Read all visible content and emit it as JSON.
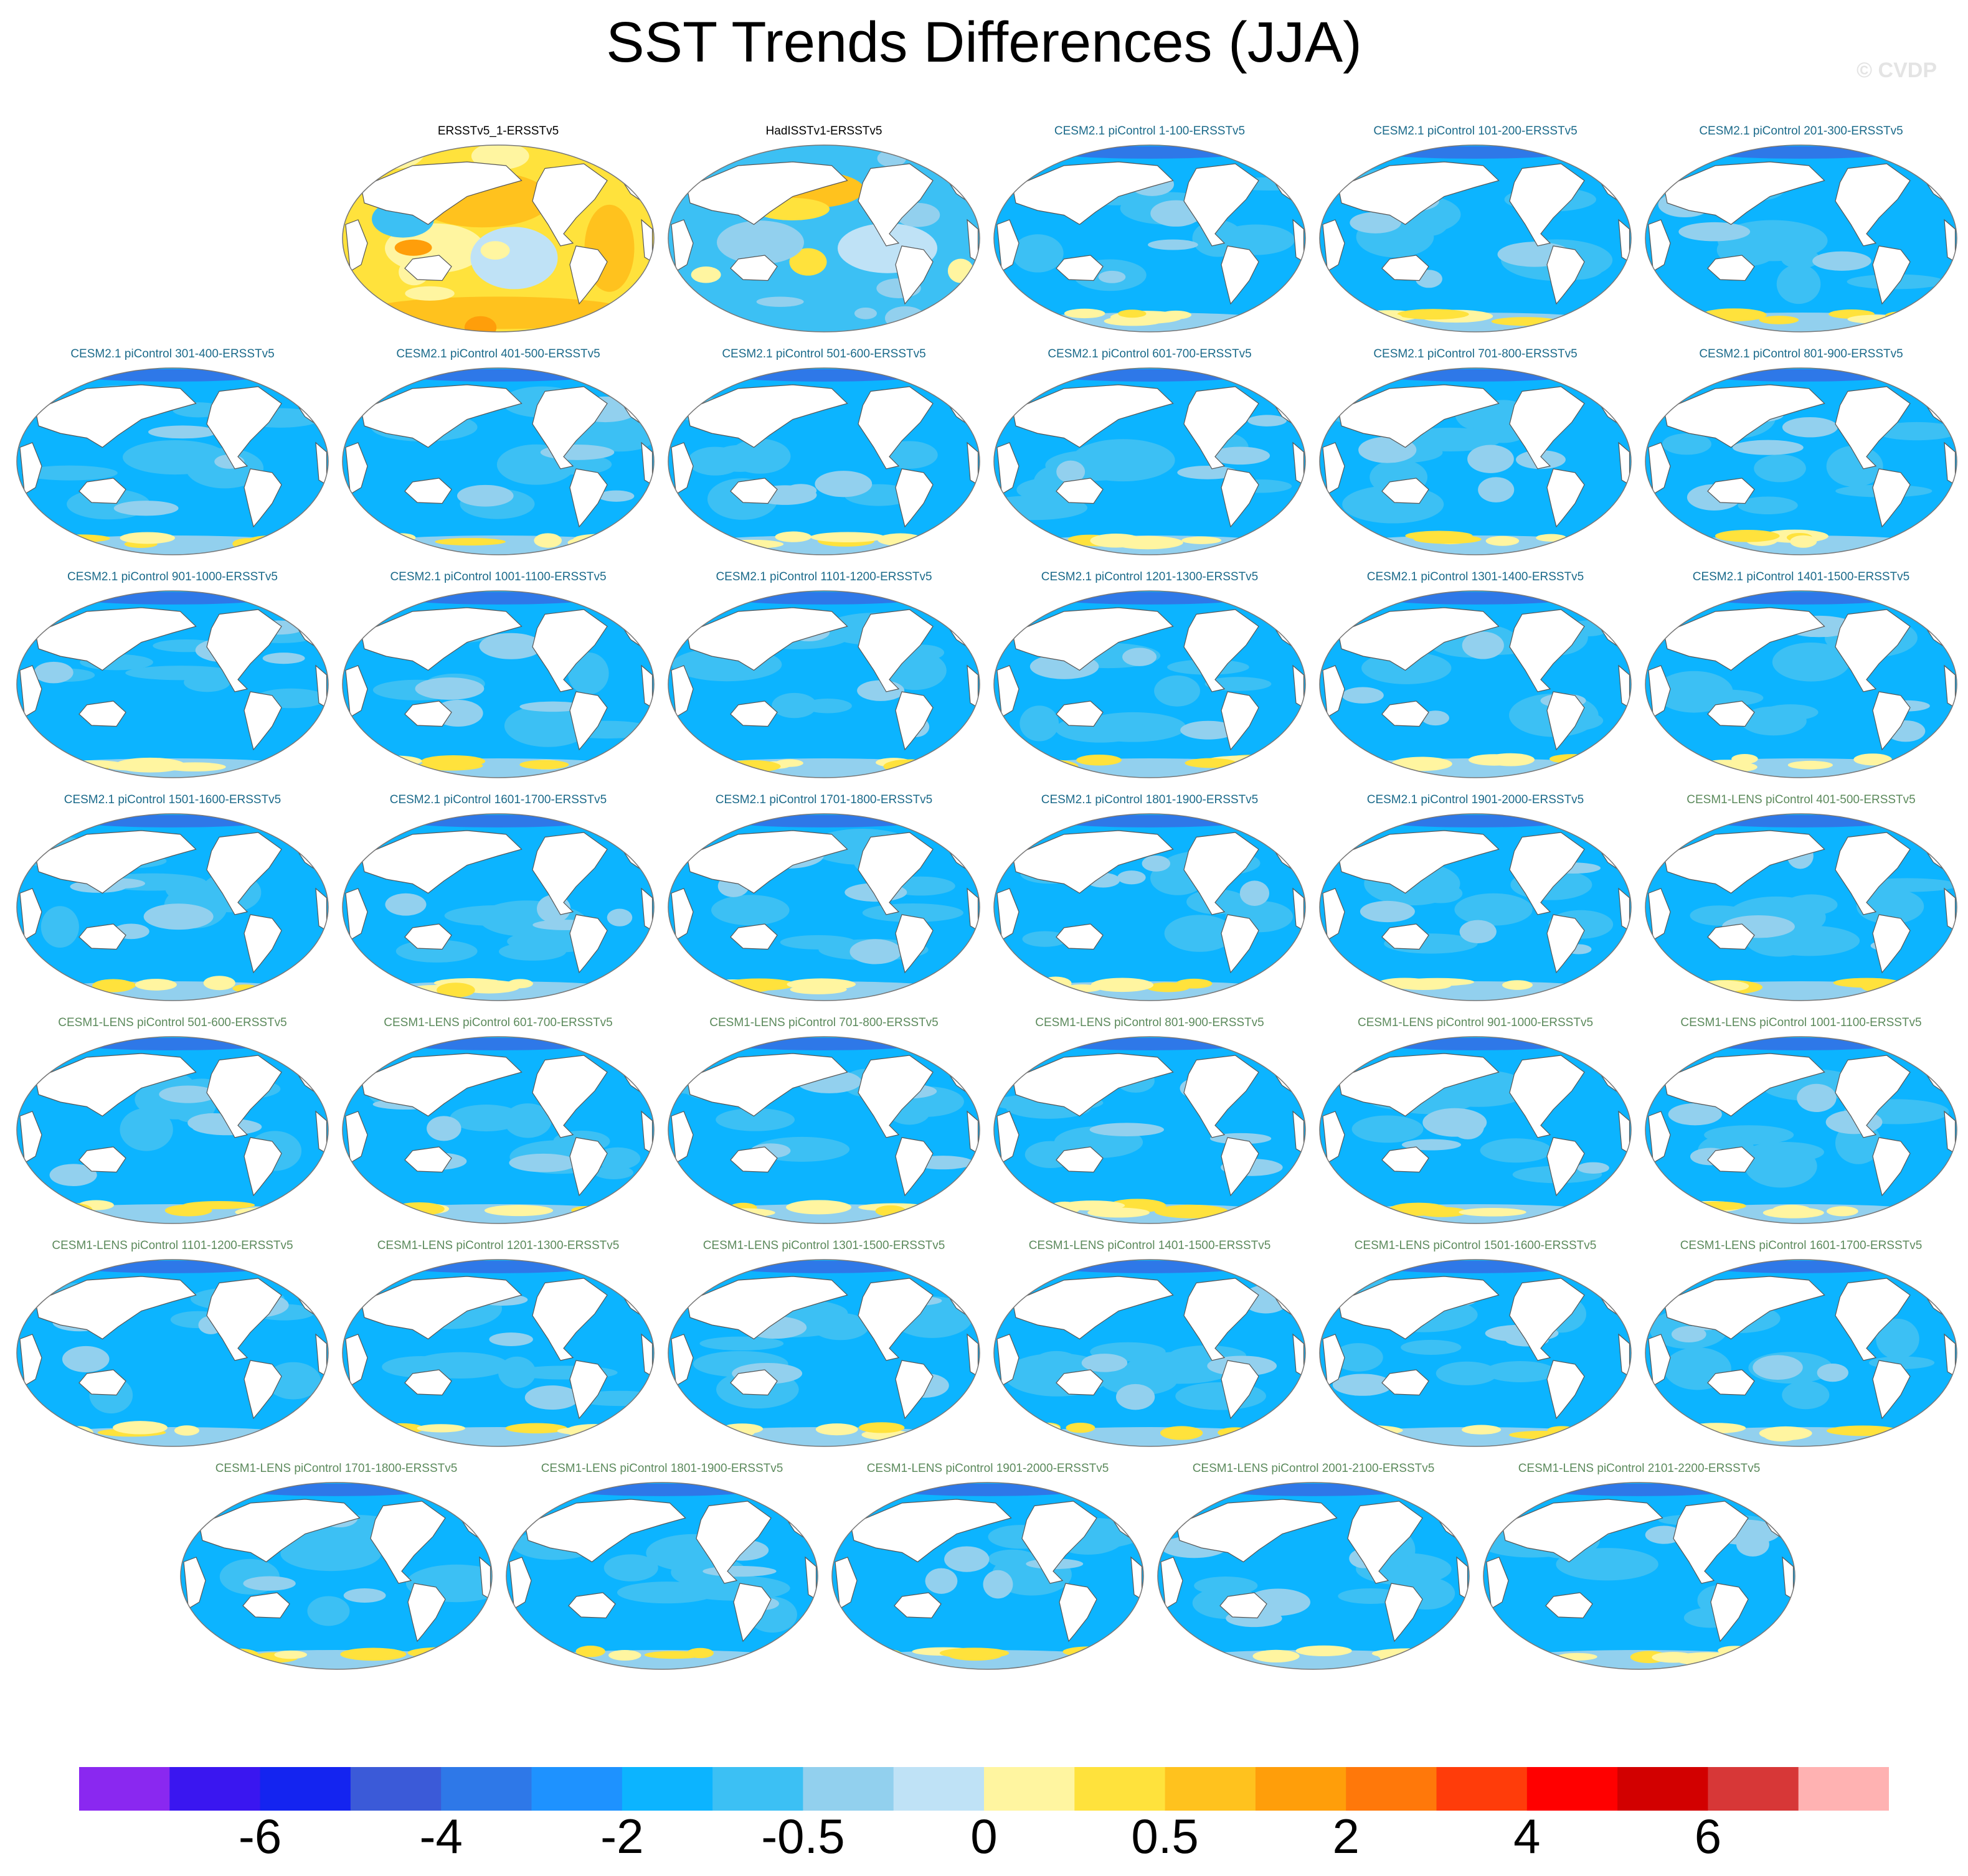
{
  "chart_data": {
    "type": "heatmap",
    "title": "SST Trends Differences (JJA)",
    "watermark": "© CVDP",
    "projection": "Robinson (Pacific-centred)",
    "panels": [
      {
        "label": "ERSSTv5_1-ERSSTv5",
        "group": "obs",
        "pattern": "warm"
      },
      {
        "label": "HadISSTv1-ERSSTv5",
        "group": "obs",
        "pattern": "mixed"
      },
      {
        "label": "CESM2.1 piControl 1-100-ERSSTv5",
        "group": "cesm2"
      },
      {
        "label": "CESM2.1 piControl 101-200-ERSSTv5",
        "group": "cesm2"
      },
      {
        "label": "CESM2.1 piControl 201-300-ERSSTv5",
        "group": "cesm2"
      },
      {
        "label": "CESM2.1 piControl 301-400-ERSSTv5",
        "group": "cesm2"
      },
      {
        "label": "CESM2.1 piControl 401-500-ERSSTv5",
        "group": "cesm2"
      },
      {
        "label": "CESM2.1 piControl 501-600-ERSSTv5",
        "group": "cesm2"
      },
      {
        "label": "CESM2.1 piControl 601-700-ERSSTv5",
        "group": "cesm2"
      },
      {
        "label": "CESM2.1 piControl 701-800-ERSSTv5",
        "group": "cesm2"
      },
      {
        "label": "CESM2.1 piControl 801-900-ERSSTv5",
        "group": "cesm2"
      },
      {
        "label": "CESM2.1 piControl 901-1000-ERSSTv5",
        "group": "cesm2"
      },
      {
        "label": "CESM2.1 piControl 1001-1100-ERSSTv5",
        "group": "cesm2"
      },
      {
        "label": "CESM2.1 piControl 1101-1200-ERSSTv5",
        "group": "cesm2"
      },
      {
        "label": "CESM2.1 piControl 1201-1300-ERSSTv5",
        "group": "cesm2"
      },
      {
        "label": "CESM2.1 piControl 1301-1400-ERSSTv5",
        "group": "cesm2"
      },
      {
        "label": "CESM2.1 piControl 1401-1500-ERSSTv5",
        "group": "cesm2"
      },
      {
        "label": "CESM2.1 piControl 1501-1600-ERSSTv5",
        "group": "cesm2"
      },
      {
        "label": "CESM2.1 piControl 1601-1700-ERSSTv5",
        "group": "cesm2"
      },
      {
        "label": "CESM2.1 piControl 1701-1800-ERSSTv5",
        "group": "cesm2"
      },
      {
        "label": "CESM2.1 piControl 1801-1900-ERSSTv5",
        "group": "cesm2"
      },
      {
        "label": "CESM2.1 piControl 1901-2000-ERSSTv5",
        "group": "cesm2"
      },
      {
        "label": "CESM1-LENS piControl 401-500-ERSSTv5",
        "group": "lens"
      },
      {
        "label": "CESM1-LENS piControl 501-600-ERSSTv5",
        "group": "lens"
      },
      {
        "label": "CESM1-LENS piControl 601-700-ERSSTv5",
        "group": "lens"
      },
      {
        "label": "CESM1-LENS piControl 701-800-ERSSTv5",
        "group": "lens"
      },
      {
        "label": "CESM1-LENS piControl 801-900-ERSSTv5",
        "group": "lens"
      },
      {
        "label": "CESM1-LENS piControl 901-1000-ERSSTv5",
        "group": "lens"
      },
      {
        "label": "CESM1-LENS piControl 1001-1100-ERSSTv5",
        "group": "lens"
      },
      {
        "label": "CESM1-LENS piControl 1101-1200-ERSSTv5",
        "group": "lens"
      },
      {
        "label": "CESM1-LENS piControl 1201-1300-ERSSTv5",
        "group": "lens"
      },
      {
        "label": "CESM1-LENS piControl 1301-1500-ERSSTv5",
        "group": "lens"
      },
      {
        "label": "CESM1-LENS piControl 1401-1500-ERSSTv5",
        "group": "lens"
      },
      {
        "label": "CESM1-LENS piControl 1501-1600-ERSSTv5",
        "group": "lens"
      },
      {
        "label": "CESM1-LENS piControl 1601-1700-ERSSTv5",
        "group": "lens"
      },
      {
        "label": "CESM1-LENS piControl 1701-1800-ERSSTv5",
        "group": "lens"
      },
      {
        "label": "CESM1-LENS piControl 1801-1900-ERSSTv5",
        "group": "lens"
      },
      {
        "label": "CESM1-LENS piControl 1901-2000-ERSSTv5",
        "group": "lens"
      },
      {
        "label": "CESM1-LENS piControl 2001-2100-ERSSTv5",
        "group": "lens"
      },
      {
        "label": "CESM1-LENS piControl 2101-2200-ERSSTv5",
        "group": "lens"
      }
    ],
    "colorbar": {
      "colors": [
        "#8a28f0",
        "#3a16f0",
        "#1424f0",
        "#3b5ad8",
        "#2e78e8",
        "#1e92ff",
        "#0cb4ff",
        "#3cc0f4",
        "#92d0ee",
        "#bfe2f6",
        "#fff5a0",
        "#ffe23c",
        "#ffc21e",
        "#ff9e0a",
        "#ff780a",
        "#ff3c0a",
        "#ff0000",
        "#d20000",
        "#d73737",
        "#ffb2b2"
      ],
      "tick_labels": [
        "-6",
        "-4",
        "-2",
        "-0.5",
        "0",
        "0.5",
        "2",
        "4",
        "6"
      ],
      "tick_boundaries": [
        2,
        4,
        6,
        8,
        10,
        12,
        14,
        16,
        18
      ]
    },
    "group_colors": {
      "obs": "#000000",
      "cesm2": "#1b6a8a",
      "lens": "#5c8a5c"
    }
  }
}
